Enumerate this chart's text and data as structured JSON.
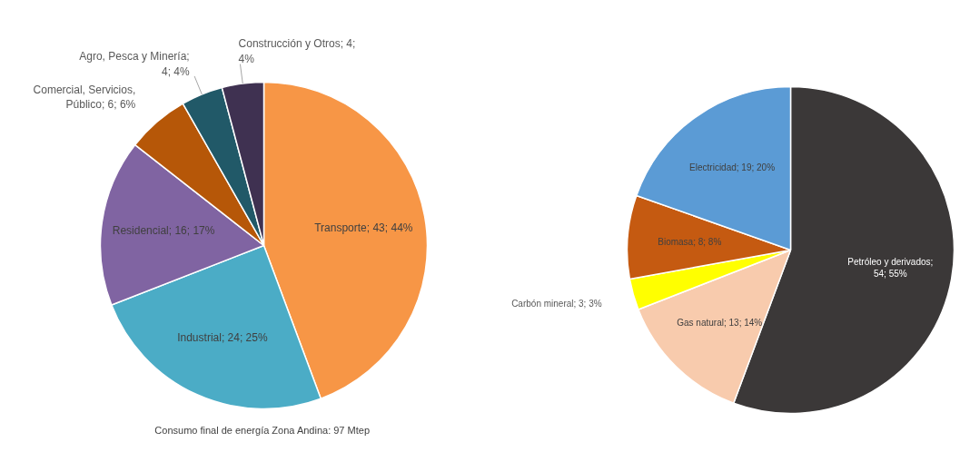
{
  "chart_data": [
    {
      "type": "pie",
      "title": "Consumo final de energía Zona Andina:  97 Mtep",
      "categories": [
        "Transporte",
        "Industrial",
        "Residencial",
        "Comercial, Servicios, Público",
        "Agro, Pesca y Minería",
        "Construcción y Otros"
      ],
      "values": [
        43,
        24,
        16,
        6,
        4,
        4
      ],
      "colors": [
        "#f79646",
        "#4bacc6",
        "#8064a2",
        "#b65708",
        "#215968",
        "#3f3151"
      ],
      "value_labels": [
        "; 43; 44%",
        "; 24; 25%",
        "; 16; 17%",
        "; 6; 6%",
        "; 4; 4%",
        "; 4; 4%"
      ]
    },
    {
      "type": "pie",
      "categories": [
        "Petróleo y derivados",
        "Gas natural",
        "Carbón mineral",
        "Biomasa",
        "Electricidad"
      ],
      "values": [
        54,
        13,
        3,
        8,
        19
      ],
      "colors": [
        "#3b3838",
        "#f8cbad",
        "#ffff00",
        "#c55a11",
        "#5b9bd5"
      ],
      "value_labels": [
        "; 54; 55%",
        "; 13; 14%",
        "; 3; 3%",
        "; 8; 8%",
        "; 19; 20%"
      ]
    }
  ]
}
